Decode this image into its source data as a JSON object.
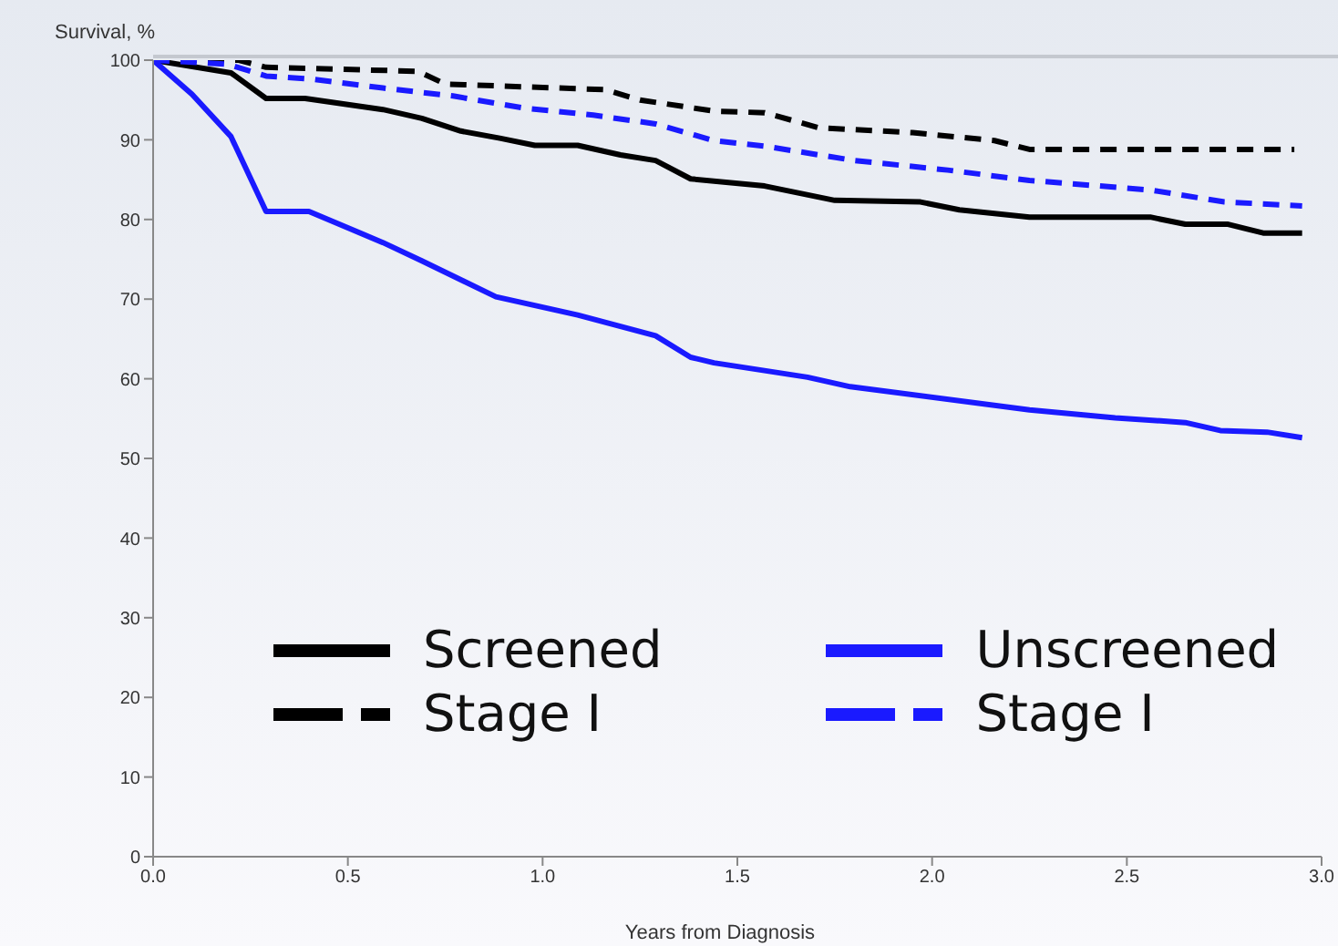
{
  "chart_data": {
    "type": "line",
    "xlabel": "Years from Diagnosis",
    "ylabel": "Survival, %",
    "xlim": [
      0,
      3.0
    ],
    "ylim": [
      0,
      100
    ],
    "xticks": [
      {
        "value": 0,
        "label": "0.0"
      },
      {
        "value": 0.5,
        "label": "0.5"
      },
      {
        "value": 1,
        "label": "1.0"
      },
      {
        "value": 1.5,
        "label": "1.5"
      },
      {
        "value": 2,
        "label": "2.0"
      },
      {
        "value": 2.5,
        "label": "2.5"
      },
      {
        "value": 3,
        "label": "3.0"
      }
    ],
    "yticks": [
      0,
      10,
      20,
      30,
      40,
      50,
      60,
      70,
      80,
      90,
      100
    ],
    "grid": false,
    "legend": "bottom",
    "marker": "none",
    "series": [
      {
        "name": "Screened",
        "color": "#000000",
        "line_style": "solid",
        "x": [
          0,
          0.2,
          0.29,
          0.39,
          0.59,
          0.69,
          0.79,
          0.89,
          0.98,
          1.09,
          1.2,
          1.29,
          1.38,
          1.57,
          1.75,
          1.97,
          2.07,
          2.25,
          2.56,
          2.65,
          2.76,
          2.85,
          2.95
        ],
        "values": [
          100,
          98.4,
          95.2,
          95.2,
          93.8,
          92.7,
          91.1,
          90.2,
          89.3,
          89.3,
          88.1,
          87.4,
          85.1,
          84.2,
          82.4,
          82.2,
          81.2,
          80.3,
          80.3,
          79.4,
          79.4,
          78.3,
          78.3
        ]
      },
      {
        "name": "Stage I",
        "color": "#000000",
        "line_style": "dashed",
        "x": [
          0,
          0.22,
          0.29,
          0.68,
          0.75,
          1.16,
          1.25,
          1.44,
          1.57,
          1.71,
          1.95,
          2.16,
          2.25,
          2.93
        ],
        "values": [
          100,
          100,
          99.1,
          98.6,
          97,
          96.3,
          95,
          93.6,
          93.4,
          91.5,
          90.9,
          89.9,
          88.8,
          88.8
        ]
      },
      {
        "name": "Unscreened",
        "color": "#1a1aff",
        "line_style": "solid",
        "x": [
          0,
          0.1,
          0.2,
          0.29,
          0.4,
          0.59,
          0.69,
          0.88,
          1.09,
          1.29,
          1.38,
          1.44,
          1.68,
          1.79,
          2.25,
          2.47,
          2.65,
          2.74,
          2.86,
          2.95
        ],
        "values": [
          100,
          95.7,
          90.4,
          81,
          81,
          77.1,
          74.8,
          70.3,
          68,
          65.4,
          62.7,
          62,
          60.2,
          59,
          56.1,
          55.1,
          54.5,
          53.5,
          53.3,
          52.6
        ]
      },
      {
        "name": "Stage I",
        "color": "#1a1aff",
        "line_style": "dashed",
        "x": [
          0,
          0.19,
          0.29,
          0.41,
          0.59,
          0.77,
          0.95,
          1.13,
          1.29,
          1.44,
          1.57,
          1.8,
          2.04,
          2.25,
          2.56,
          2.75,
          2.95
        ],
        "values": [
          100,
          99.5,
          98,
          97.6,
          96.5,
          95.5,
          94,
          93.1,
          92,
          89.9,
          89.2,
          87.4,
          86.2,
          84.9,
          83.7,
          82.2,
          81.7
        ]
      }
    ]
  }
}
